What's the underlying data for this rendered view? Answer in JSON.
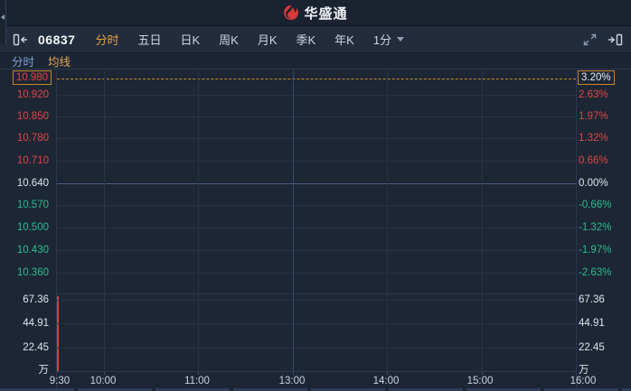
{
  "header": {
    "logo_text": "华盛通"
  },
  "toolbar": {
    "stock_code": "06837",
    "tabs": [
      {
        "label": "分时",
        "active": true
      },
      {
        "label": "五日",
        "active": false
      },
      {
        "label": "日K",
        "active": false
      },
      {
        "label": "周K",
        "active": false
      },
      {
        "label": "月K",
        "active": false
      },
      {
        "label": "季K",
        "active": false
      },
      {
        "label": "年K",
        "active": false
      }
    ],
    "interval_dropdown": "1分"
  },
  "subtabs": [
    {
      "label": "分时",
      "color": "#7e9fd1"
    },
    {
      "label": "均线",
      "color": "#e0a452"
    }
  ],
  "colors": {
    "accent_orange": "#e2a03c",
    "up_red": "#e24545",
    "down_green": "#2bbd8f",
    "neutral_text": "#dfe5ee",
    "volume_bar_red": "#d94040",
    "current_price_box_border": "#c8872b",
    "background": "#1d2634"
  },
  "chart_data": {
    "type": "line",
    "market_session": "9:30-12:00, 13:00-16:00",
    "x_labels": [
      "9:30",
      "10:00",
      "11:00",
      "13:00",
      "14:00",
      "15:00",
      "16:00"
    ],
    "price_axis": [
      {
        "price": "10.980",
        "pct": "3.20%",
        "state": "up",
        "boxed": true
      },
      {
        "price": "10.920",
        "pct": "2.63%",
        "state": "up",
        "boxed": false
      },
      {
        "price": "10.850",
        "pct": "1.97%",
        "state": "up",
        "boxed": false
      },
      {
        "price": "10.780",
        "pct": "1.32%",
        "state": "up",
        "boxed": false
      },
      {
        "price": "10.710",
        "pct": "0.66%",
        "state": "up",
        "boxed": false
      },
      {
        "price": "10.640",
        "pct": "0.00%",
        "state": "flat",
        "boxed": false
      },
      {
        "price": "10.570",
        "pct": "-0.66%",
        "state": "down",
        "boxed": false
      },
      {
        "price": "10.500",
        "pct": "-1.32%",
        "state": "down",
        "boxed": false
      },
      {
        "price": "10.430",
        "pct": "-1.97%",
        "state": "down",
        "boxed": false
      },
      {
        "price": "10.360",
        "pct": "-2.63%",
        "state": "down",
        "boxed": false
      }
    ],
    "volume_axis_labels": [
      "67.36",
      "44.91",
      "22.45"
    ],
    "volume_unit": "万",
    "prev_close": "10.640",
    "current_price": "10.980",
    "current_change_pct": "3.20%",
    "series": [
      {
        "name": "price",
        "x": [
          "9:30"
        ],
        "values": [
          10.98
        ]
      },
      {
        "name": "volume",
        "x": [
          "9:30"
        ],
        "values": [
          67.4
        ],
        "bar_color": "#d94040"
      }
    ],
    "ylim_price": [
      10.36,
      10.98
    ],
    "ylim_volume": [
      0,
      67.36
    ],
    "grid": true
  }
}
